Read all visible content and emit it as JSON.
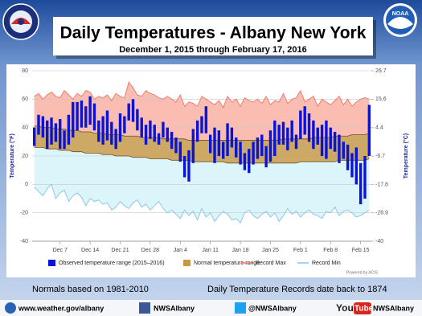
{
  "chart_data": {
    "type": "range",
    "title": "Daily Temperatures - Albany New York",
    "subtitle": "December 1, 2015 through February 17, 2016",
    "y_label": "Temperature (°F)",
    "y2_label": "Temperature (°C)",
    "ylim": [
      -40,
      80
    ],
    "yticks": [
      -40,
      -20,
      0,
      20,
      40,
      60,
      80
    ],
    "y2lim": [
      -40,
      26.7
    ],
    "y2ticks": [
      -40,
      -28.9,
      -17.8,
      -6.7,
      4.4,
      15.6,
      26.7
    ],
    "grid": true,
    "categories": [
      null,
      null,
      null,
      null,
      null,
      null,
      "Dec 7",
      null,
      null,
      null,
      null,
      null,
      null,
      "Dec 14",
      null,
      null,
      null,
      null,
      null,
      null,
      "Dec 21",
      null,
      null,
      null,
      null,
      null,
      null,
      "Dec 28",
      null,
      null,
      null,
      null,
      null,
      null,
      "Jan 4",
      null,
      null,
      null,
      null,
      null,
      null,
      "Jan 11",
      null,
      null,
      null,
      null,
      null,
      null,
      "Jan 18",
      null,
      null,
      null,
      null,
      null,
      null,
      "Jan 25",
      null,
      null,
      null,
      null,
      null,
      null,
      "Feb 1",
      null,
      null,
      null,
      null,
      null,
      null,
      "Feb 8",
      null,
      null,
      null,
      null,
      null,
      null,
      "Feb 15",
      null,
      null
    ],
    "series": [
      {
        "name": "Observed temperature range (2015–2016)",
        "kind": "range",
        "color": "#0a14d8",
        "high": [
          40,
          49,
          48,
          45,
          47,
          43,
          46,
          38,
          49,
          58,
          58,
          59,
          55,
          62,
          57,
          45,
          48,
          52,
          44,
          39,
          50,
          48,
          57,
          60,
          53,
          47,
          42,
          45,
          42,
          36,
          44,
          40,
          37,
          33,
          30,
          20,
          24,
          39,
          45,
          48,
          55,
          35,
          40,
          38,
          30,
          43,
          40,
          33,
          30,
          22,
          25,
          30,
          33,
          35,
          27,
          38,
          45,
          42,
          44,
          40,
          45,
          35,
          52,
          55,
          50,
          45,
          40,
          42,
          45,
          40,
          37,
          35,
          30,
          28,
          22,
          26,
          15,
          20,
          56
        ],
        "low": [
          27,
          35,
          33,
          25,
          28,
          30,
          25,
          25,
          28,
          33,
          38,
          40,
          40,
          42,
          38,
          30,
          28,
          31,
          28,
          25,
          30,
          36,
          45,
          44,
          38,
          33,
          28,
          32,
          30,
          28,
          33,
          30,
          25,
          22,
          16,
          5,
          2,
          15,
          30,
          36,
          36,
          22,
          15,
          20,
          18,
          20,
          26,
          19,
          14,
          10,
          8,
          14,
          18,
          20,
          12,
          16,
          20,
          28,
          28,
          24,
          30,
          25,
          32,
          35,
          30,
          25,
          28,
          20,
          18,
          25,
          23,
          15,
          18,
          10,
          5,
          0,
          -14,
          -10,
          20
        ]
      },
      {
        "name": "Normal temperature range",
        "kind": "band",
        "color": "#c49a4a",
        "high": [
          41,
          41,
          40,
          40,
          40,
          39,
          39,
          39,
          38,
          38,
          38,
          37,
          37,
          37,
          36,
          36,
          36,
          35,
          35,
          35,
          35,
          34,
          34,
          34,
          34,
          33,
          33,
          33,
          33,
          33,
          32,
          32,
          32,
          32,
          32,
          32,
          31,
          31,
          31,
          31,
          31,
          31,
          31,
          31,
          31,
          31,
          31,
          31,
          31,
          31,
          31,
          31,
          31,
          31,
          31,
          31,
          31,
          31,
          32,
          32,
          32,
          32,
          32,
          32,
          32,
          33,
          33,
          33,
          33,
          33,
          34,
          34,
          34,
          34,
          35,
          35,
          35,
          35,
          36
        ],
        "low": [
          26,
          26,
          26,
          25,
          25,
          25,
          24,
          24,
          24,
          23,
          23,
          23,
          22,
          22,
          22,
          22,
          21,
          21,
          21,
          20,
          20,
          20,
          20,
          19,
          19,
          19,
          19,
          18,
          18,
          18,
          18,
          18,
          17,
          17,
          17,
          17,
          17,
          16,
          16,
          16,
          16,
          16,
          16,
          16,
          16,
          15,
          15,
          15,
          15,
          15,
          15,
          15,
          15,
          15,
          15,
          15,
          15,
          15,
          15,
          15,
          15,
          15,
          16,
          16,
          16,
          16,
          16,
          16,
          16,
          16,
          16,
          17,
          17,
          17,
          17,
          17,
          17,
          17,
          18
        ]
      },
      {
        "name": "Record Max",
        "kind": "line",
        "color": "#f07c6c",
        "fill": "#fbbcb2",
        "values": [
          62,
          64,
          60,
          63,
          65,
          62,
          61,
          66,
          63,
          60,
          64,
          62,
          66,
          65,
          60,
          62,
          61,
          63,
          59,
          64,
          62,
          61,
          72,
          68,
          63,
          62,
          66,
          64,
          63,
          61,
          60,
          62,
          60,
          58,
          63,
          55,
          58,
          57,
          55,
          62,
          60,
          58,
          56,
          59,
          54,
          62,
          58,
          60,
          55,
          61,
          59,
          58,
          60,
          57,
          62,
          56,
          59,
          58,
          64,
          57,
          60,
          61,
          66,
          58,
          60,
          62,
          55,
          60,
          58,
          56,
          59,
          62,
          56,
          60,
          55,
          58,
          60,
          61,
          60
        ]
      },
      {
        "name": "Record Min",
        "kind": "line",
        "color": "#8cc8e6",
        "fill": "#dcf5fb",
        "values": [
          -2,
          -5,
          -8,
          -3,
          0,
          -10,
          -6,
          -4,
          -12,
          -8,
          -6,
          -9,
          -15,
          -10,
          -12,
          -11,
          -14,
          -13,
          -18,
          -16,
          -12,
          -15,
          -17,
          -13,
          -11,
          -16,
          -14,
          -18,
          -15,
          -12,
          -17,
          -20,
          -18,
          -21,
          -24,
          -18,
          -22,
          -19,
          -25,
          -17,
          -23,
          -20,
          -26,
          -22,
          -19,
          -21,
          -25,
          -24,
          -27,
          -20,
          -18,
          -22,
          -24,
          -21,
          -19,
          -23,
          -20,
          -26,
          -22,
          -17,
          -21,
          -19,
          -23,
          -20,
          -18,
          -21,
          -22,
          -24,
          -19,
          -20,
          -16,
          -22,
          -19,
          -18,
          -20,
          -23,
          -22,
          -20,
          -18
        ]
      }
    ],
    "credit": "Powered by ACIS"
  },
  "notes": {
    "normals": "Normals based on 1981-2010",
    "records": "Daily Temperature Records date back to 1874"
  },
  "logos": {
    "noaa": "NOAA"
  },
  "footer": {
    "website": "www.weather.gov/albany",
    "facebook": "NWSAlbany",
    "twitter": "@NWSAlbany",
    "youtube_you": "You",
    "youtube_tube": "Tube",
    "youtube": "NWSAlbany"
  }
}
